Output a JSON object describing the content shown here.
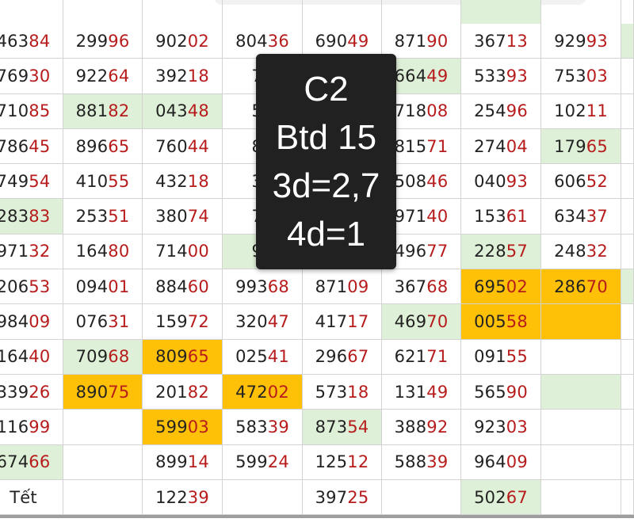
{
  "rows": [
    [
      {
        "t": "46384",
        "h": 2
      },
      {
        "t": "29996",
        "h": 2
      },
      {
        "t": "90202",
        "h": 2
      },
      {
        "t": "80436",
        "h": 2
      },
      {
        "t": "69049",
        "h": 2
      },
      {
        "t": "87190",
        "h": 2
      },
      {
        "t": "36713",
        "h": 2
      },
      {
        "t": "92993",
        "h": 2
      },
      {
        "t": "",
        "bg": "green"
      }
    ],
    [
      {
        "t": "76930",
        "h": 2
      },
      {
        "t": "92264",
        "h": 2
      },
      {
        "t": "39218",
        "h": 2
      },
      {
        "t": "78",
        "h": 0
      },
      {
        "t": "",
        "h": 0
      },
      {
        "t": "66449",
        "h": 2,
        "bg": "green"
      },
      {
        "t": "53393",
        "h": 2
      },
      {
        "t": "75303",
        "h": 2
      },
      {
        "t": ""
      }
    ],
    [
      {
        "t": "71085",
        "h": 2
      },
      {
        "t": "88182",
        "h": 2,
        "bg": "green"
      },
      {
        "t": "04348",
        "h": 2,
        "bg": "green"
      },
      {
        "t": "58",
        "h": 0
      },
      {
        "t": "",
        "h": 0
      },
      {
        "t": "71808",
        "h": 2
      },
      {
        "t": "25496",
        "h": 2
      },
      {
        "t": "10211",
        "h": 2
      },
      {
        "t": ""
      }
    ],
    [
      {
        "t": "78645",
        "h": 2
      },
      {
        "t": "89665",
        "h": 2
      },
      {
        "t": "76044",
        "h": 2
      },
      {
        "t": "89",
        "h": 0
      },
      {
        "t": "",
        "h": 0
      },
      {
        "t": "81571",
        "h": 2
      },
      {
        "t": "27404",
        "h": 2
      },
      {
        "t": "17965",
        "h": 2,
        "bg": "green"
      },
      {
        "t": ""
      }
    ],
    [
      {
        "t": "74954",
        "h": 2
      },
      {
        "t": "41055",
        "h": 2
      },
      {
        "t": "43218",
        "h": 2
      },
      {
        "t": "31",
        "h": 0
      },
      {
        "t": "",
        "h": 0
      },
      {
        "t": "50846",
        "h": 2
      },
      {
        "t": "04093",
        "h": 2
      },
      {
        "t": "60652",
        "h": 2
      },
      {
        "t": ""
      }
    ],
    [
      {
        "t": "28383",
        "h": 2,
        "bg": "green"
      },
      {
        "t": "25351",
        "h": 2
      },
      {
        "t": "38074",
        "h": 2
      },
      {
        "t": "77",
        "h": 0
      },
      {
        "t": "",
        "h": 0
      },
      {
        "t": "97140",
        "h": 2
      },
      {
        "t": "15361",
        "h": 2
      },
      {
        "t": "63437",
        "h": 2
      },
      {
        "t": ""
      }
    ],
    [
      {
        "t": "97132",
        "h": 2
      },
      {
        "t": "16480",
        "h": 2
      },
      {
        "t": "71400",
        "h": 2
      },
      {
        "t": "97",
        "h": 0,
        "bg": "green"
      },
      {
        "t": "",
        "h": 0
      },
      {
        "t": "49677",
        "h": 2
      },
      {
        "t": "22857",
        "h": 2,
        "bg": "green"
      },
      {
        "t": "24832",
        "h": 2
      },
      {
        "t": ""
      }
    ],
    [
      {
        "t": "20653",
        "h": 2
      },
      {
        "t": "09401",
        "h": 2
      },
      {
        "t": "88460",
        "h": 2
      },
      {
        "t": "99368",
        "h": 2
      },
      {
        "t": "87109",
        "h": 2
      },
      {
        "t": "36768",
        "h": 2
      },
      {
        "t": "69502",
        "h": 2,
        "bg": "orange"
      },
      {
        "t": "28670",
        "h": 2,
        "bg": "orange"
      },
      {
        "t": "",
        "bg": "green"
      }
    ],
    [
      {
        "t": "98409",
        "h": 2
      },
      {
        "t": "07631",
        "h": 2
      },
      {
        "t": "15972",
        "h": 2
      },
      {
        "t": "32047",
        "h": 2
      },
      {
        "t": "41717",
        "h": 2
      },
      {
        "t": "46970",
        "h": 2,
        "bg": "green"
      },
      {
        "t": "00558",
        "h": 2,
        "bg": "orange"
      },
      {
        "t": "",
        "bg": "orange"
      },
      {
        "t": ""
      }
    ],
    [
      {
        "t": "16440",
        "h": 2
      },
      {
        "t": "70968",
        "h": 2,
        "bg": "green"
      },
      {
        "t": "80965",
        "h": 2,
        "bg": "orange"
      },
      {
        "t": "02541",
        "h": 2
      },
      {
        "t": "29667",
        "h": 2
      },
      {
        "t": "62171",
        "h": 2
      },
      {
        "t": "09155",
        "h": 2
      },
      {
        "t": ""
      },
      {
        "t": ""
      }
    ],
    [
      {
        "t": "33926",
        "h": 2
      },
      {
        "t": "89075",
        "h": 2,
        "bg": "orange"
      },
      {
        "t": "20182",
        "h": 2
      },
      {
        "t": "47202",
        "h": 2,
        "bg": "orange"
      },
      {
        "t": "57318",
        "h": 2
      },
      {
        "t": "13149",
        "h": 2
      },
      {
        "t": "56590",
        "h": 2
      },
      {
        "t": "",
        "bg": "green"
      },
      {
        "t": ""
      }
    ],
    [
      {
        "t": "11699",
        "h": 2
      },
      {
        "t": ""
      },
      {
        "t": "59903",
        "h": 2,
        "bg": "orange"
      },
      {
        "t": "58339",
        "h": 2
      },
      {
        "t": "87354",
        "h": 2,
        "bg": "green"
      },
      {
        "t": "38892",
        "h": 2
      },
      {
        "t": "92303",
        "h": 2
      },
      {
        "t": ""
      },
      {
        "t": ""
      }
    ],
    [
      {
        "t": "67466",
        "h": 2,
        "bg": "green"
      },
      {
        "t": ""
      },
      {
        "t": "89914",
        "h": 2
      },
      {
        "t": "59924",
        "h": 2
      },
      {
        "t": "12512",
        "h": 2
      },
      {
        "t": "58839",
        "h": 2
      },
      {
        "t": "96409",
        "h": 2
      },
      {
        "t": ""
      },
      {
        "t": ""
      }
    ],
    [
      {
        "t": "Tết",
        "h": 0
      },
      {
        "t": ""
      },
      {
        "t": "12239",
        "h": 2
      },
      {
        "t": ""
      },
      {
        "t": "39725",
        "h": 2
      },
      {
        "t": ""
      },
      {
        "t": "50267",
        "h": 2,
        "bg": "green"
      },
      {
        "t": ""
      },
      {
        "t": ""
      }
    ]
  ],
  "top_row_bg": [
    "",
    "",
    "",
    "",
    "",
    "",
    "green",
    "",
    ""
  ],
  "overlay": {
    "line1": "C2",
    "line2": "Btd 15",
    "line3": "3d=2,7",
    "line4": "4d=1"
  },
  "colors": {
    "green": "#dff0d8",
    "orange": "#ffc107",
    "highlight_digits": "#b71c1c",
    "overlay_bg": "#212121"
  }
}
